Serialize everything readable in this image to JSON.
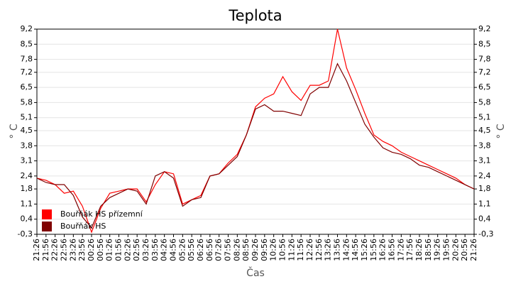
{
  "chart_data": {
    "type": "line",
    "title": "Teplota",
    "y_label": "° C",
    "x_label": "Čas",
    "categories": [
      "21:26",
      "21:56",
      "22:26",
      "22:56",
      "23:26",
      "23:56",
      "00:26",
      "00:56",
      "01:26",
      "01:56",
      "02:26",
      "02:56",
      "03:26",
      "03:56",
      "04:26",
      "04:56",
      "05:26",
      "05:56",
      "06:26",
      "06:56",
      "07:26",
      "07:56",
      "08:26",
      "08:56",
      "09:26",
      "09:56",
      "10:26",
      "10:56",
      "11:26",
      "11:56",
      "12:26",
      "12:56",
      "13:26",
      "13:56",
      "14:26",
      "14:56",
      "15:26",
      "15:56",
      "16:26",
      "16:56",
      "17:26",
      "17:56",
      "18:26",
      "18:56",
      "19:26",
      "19:56",
      "20:26",
      "20:56",
      "21:26"
    ],
    "series": [
      {
        "name": "Bouřňák HS přízemní",
        "color": "#ff0000",
        "values": [
          2.3,
          2.2,
          2.0,
          1.6,
          1.7,
          1.0,
          -0.2,
          0.9,
          1.6,
          1.7,
          1.8,
          1.8,
          1.2,
          2.0,
          2.6,
          2.5,
          1.1,
          1.3,
          1.5,
          2.4,
          2.5,
          3.0,
          3.4,
          4.3,
          5.6,
          6.0,
          6.2,
          7.0,
          6.3,
          5.9,
          6.6,
          6.6,
          6.8,
          9.2,
          7.4,
          6.4,
          5.3,
          4.3,
          4.0,
          3.8,
          3.5,
          3.3,
          3.1,
          2.9,
          2.7,
          2.5,
          2.3,
          2.0,
          1.8
        ]
      },
      {
        "name": "Bouřňák HS",
        "color": "#800000",
        "values": [
          2.3,
          2.1,
          2.0,
          2.0,
          1.5,
          0.5,
          0.0,
          1.0,
          1.4,
          1.6,
          1.8,
          1.7,
          1.1,
          2.4,
          2.6,
          2.3,
          1.0,
          1.3,
          1.4,
          2.4,
          2.5,
          2.9,
          3.3,
          4.3,
          5.5,
          5.7,
          5.4,
          5.4,
          5.3,
          5.2,
          6.2,
          6.5,
          6.5,
          7.6,
          6.8,
          5.8,
          4.8,
          4.2,
          3.7,
          3.5,
          3.4,
          3.2,
          2.9,
          2.8,
          2.6,
          2.4,
          2.2,
          2.0,
          1.8
        ]
      }
    ],
    "ylim": [
      -0.3,
      9.2
    ],
    "yticks": [
      {
        "value": -0.3,
        "label": "-0,3"
      },
      {
        "value": 0.4,
        "label": "0,4"
      },
      {
        "value": 1.1,
        "label": "1,1"
      },
      {
        "value": 1.8,
        "label": "1,8"
      },
      {
        "value": 2.4,
        "label": "2,4"
      },
      {
        "value": 3.1,
        "label": "3,1"
      },
      {
        "value": 3.8,
        "label": "3,8"
      },
      {
        "value": 4.5,
        "label": "4,5"
      },
      {
        "value": 5.1,
        "label": "5,1"
      },
      {
        "value": 5.8,
        "label": "5,8"
      },
      {
        "value": 6.5,
        "label": "6,5"
      },
      {
        "value": 7.2,
        "label": "7,2"
      },
      {
        "value": 7.8,
        "label": "7,8"
      },
      {
        "value": 8.5,
        "label": "8,5"
      },
      {
        "value": 9.2,
        "label": "9,2"
      }
    ],
    "grid": true,
    "legend": "lower left"
  }
}
